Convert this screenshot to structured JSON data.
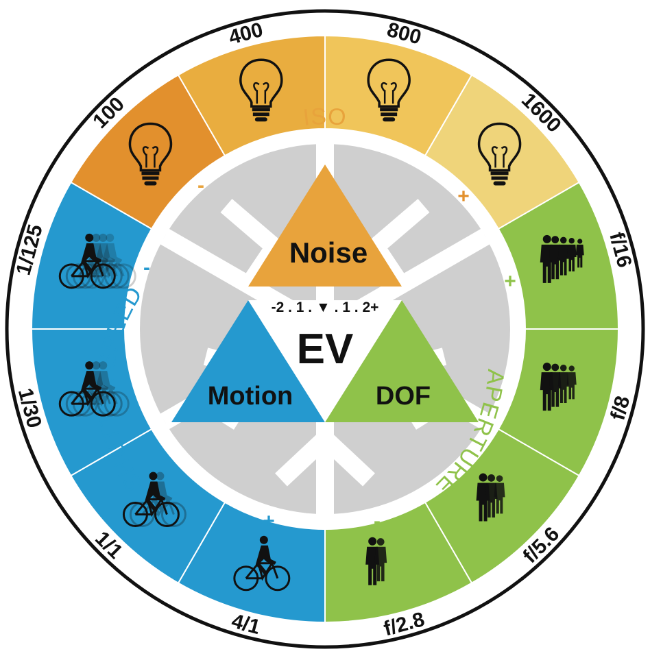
{
  "colors": {
    "iso": "#e8a33c",
    "iso_dark": "#e2902d",
    "iso_light": "#f0c55a",
    "shutter": "#2599cf",
    "aperture": "#8fc24a",
    "hub": "#c9c9c9",
    "ink": "#111111",
    "ring": "#ffffff"
  },
  "iso": {
    "title": "ISO",
    "minus": "-",
    "plus": "+",
    "stops": [
      "100",
      "400",
      "800",
      "1600"
    ],
    "icon": "lightbulb-icon"
  },
  "shutter": {
    "title": "SHUTTER SPEED",
    "minus": "-",
    "plus": "+",
    "stops": [
      "1/125",
      "1/30",
      "1/1",
      "4/1"
    ],
    "icon": "bicycle-rider-icon"
  },
  "aperture": {
    "title": "APERTURE",
    "minus": "-",
    "plus": "+",
    "stops": [
      "f/2.8",
      "f/5.6",
      "f/8",
      "f/16"
    ],
    "icon": "people-group-icon"
  },
  "triangle": {
    "top": "Noise",
    "left": "Motion",
    "right": "DOF",
    "center": "EV",
    "scale": "-2 . 1 . ▼ . 1 . 2+"
  }
}
